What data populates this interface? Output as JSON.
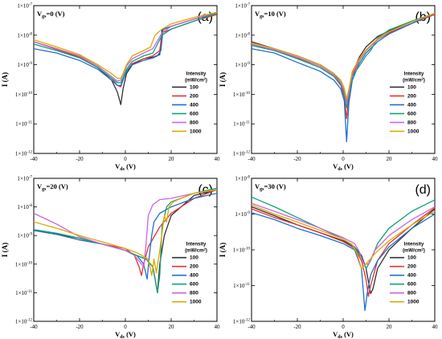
{
  "legend": {
    "title_line1": "Intensity",
    "title_line2": "(mW/cm",
    "title_sup": "2",
    "title_close": ")",
    "position": "center-right"
  },
  "series_colors": [
    "#333333",
    "#e8312f",
    "#1f6fd1",
    "#11a37a",
    "#cc66dd",
    "#e0a800"
  ],
  "chart_data": [
    {
      "type": "line",
      "panel_label": "(a)",
      "gate_label": "V",
      "gate_sub": "gs",
      "gate_value": "=0 (V)",
      "xlabel": "V",
      "xlabel_sub": "ds",
      "xlabel_unit": " (V)",
      "ylabel": "I (A)",
      "y_scale": "log",
      "xlim": [
        -40,
        40
      ],
      "ylim": [
        1e-12,
        1e-07
      ],
      "x_ticks": [
        "-40",
        "-20",
        "0",
        "20",
        "40"
      ],
      "y_ticks": [
        {
          "m": "1×10",
          "e": "-12"
        },
        {
          "m": "1×10",
          "e": "-11"
        },
        {
          "m": "1×10",
          "e": "-10"
        },
        {
          "m": "1×10",
          "e": "-9"
        },
        {
          "m": "1×10",
          "e": "-8"
        },
        {
          "m": "1×10",
          "e": "-7"
        }
      ],
      "series": [
        {
          "name": "100",
          "x": [
            -40,
            -30,
            -20,
            -12,
            -6,
            -3.5,
            -2,
            -1,
            0.5,
            3,
            8,
            12,
            15,
            16,
            20,
            30,
            40
          ],
          "y": [
            6e-09,
            3.5e-09,
            1.8e-09,
            8e-10,
            3e-10,
            1.2e-10,
            4.5e-11,
            1.5e-10,
            5e-10,
            1e-09,
            1.6e-09,
            1.8e-09,
            2.2e-09,
            1.5e-08,
            2e-08,
            3.5e-08,
            5.5e-08
          ]
        },
        {
          "name": "200",
          "x": [
            -40,
            -30,
            -20,
            -12,
            -6,
            -3.5,
            -2,
            -1,
            0.5,
            3,
            8,
            12,
            15,
            16,
            20,
            30,
            40
          ],
          "y": [
            6e-09,
            3.3e-09,
            1.8e-09,
            8e-10,
            3.5e-10,
            2e-10,
            1.8e-10,
            3e-10,
            6e-10,
            1.1e-09,
            1.6e-09,
            2e-09,
            3e-09,
            1.2e-08,
            1.6e-08,
            3e-08,
            5e-08
          ]
        },
        {
          "name": "400",
          "x": [
            -40,
            -30,
            -20,
            -12,
            -6,
            -3.5,
            -2,
            -1,
            0.5,
            3,
            8,
            12,
            14,
            15.5,
            16.5,
            20,
            30,
            40
          ],
          "y": [
            3.5e-09,
            2.5e-09,
            1.4e-09,
            7e-10,
            3e-10,
            2e-10,
            2e-10,
            3e-10,
            6e-10,
            1e-09,
            1.4e-09,
            1.7e-09,
            2e-09,
            3e-09,
            1.6e-08,
            2e-08,
            3.5e-08,
            5.5e-08
          ]
        },
        {
          "name": "600",
          "x": [
            -40,
            -30,
            -20,
            -12,
            -6,
            -3.5,
            -2,
            -1,
            0.5,
            3,
            8,
            12,
            16,
            20,
            30,
            40
          ],
          "y": [
            5e-09,
            3e-09,
            1.7e-09,
            8e-10,
            3.5e-10,
            2.5e-10,
            2.5e-10,
            3.5e-10,
            7e-10,
            1.3e-09,
            2e-09,
            2.5e-09,
            1e-08,
            1.6e-08,
            3e-08,
            5.5e-08
          ]
        },
        {
          "name": "800",
          "x": [
            -40,
            -30,
            -20,
            -12,
            -6,
            -3.5,
            -2,
            -1,
            0.5,
            3,
            8,
            12,
            16,
            20,
            30,
            40
          ],
          "y": [
            6e-09,
            3.5e-09,
            2e-09,
            9e-10,
            4e-10,
            2.8e-10,
            3e-10,
            4.5e-10,
            9e-10,
            1.6e-09,
            2.5e-09,
            3.5e-09,
            1.2e-08,
            2e-08,
            3.5e-08,
            6e-08
          ]
        },
        {
          "name": "1000",
          "x": [
            -40,
            -30,
            -20,
            -12,
            -6,
            -3.5,
            -2,
            -1,
            0.5,
            3,
            8,
            11,
            13,
            16,
            20,
            30,
            40
          ],
          "y": [
            7e-09,
            4e-09,
            2.2e-09,
            1e-09,
            5e-10,
            3.5e-10,
            3.5e-10,
            5e-10,
            1e-09,
            2e-09,
            3e-09,
            4e-09,
            1e-08,
            1.6e-08,
            2.4e-08,
            4e-08,
            6e-08
          ]
        }
      ]
    },
    {
      "type": "line",
      "panel_label": "(b)",
      "gate_label": "V",
      "gate_sub": "gs",
      "gate_value": "=10 (V)",
      "xlabel": "V",
      "xlabel_sub": "ds",
      "xlabel_unit": " (V)",
      "ylabel": "I (A)",
      "y_scale": "log",
      "xlim": [
        -40,
        40
      ],
      "ylim": [
        1e-12,
        1e-07
      ],
      "x_ticks": [
        "-40",
        "-20",
        "0",
        "20",
        "40"
      ],
      "y_ticks": [
        {
          "m": "1×10",
          "e": "-12"
        },
        {
          "m": "1×10",
          "e": "-11"
        },
        {
          "m": "1×10",
          "e": "-10"
        },
        {
          "m": "1×10",
          "e": "-9"
        },
        {
          "m": "1×10",
          "e": "-8"
        },
        {
          "m": "1×10",
          "e": "-7"
        }
      ],
      "series": [
        {
          "name": "100",
          "x": [
            -40,
            -30,
            -20,
            -10,
            -4,
            -1,
            0.5,
            1.5,
            2.5,
            4,
            7,
            10,
            15,
            20,
            30,
            40
          ],
          "y": [
            6e-09,
            3.5e-09,
            2e-09,
            1e-09,
            5e-10,
            2.5e-10,
            1.2e-10,
            6e-11,
            1.3e-10,
            5e-10,
            1.8e-09,
            4e-09,
            9e-09,
            1.4e-08,
            2.8e-08,
            5.5e-08
          ]
        },
        {
          "name": "200",
          "x": [
            -40,
            -30,
            -20,
            -10,
            -4,
            -1,
            0.5,
            1.5,
            2.5,
            4,
            7,
            10,
            15,
            20,
            30,
            40
          ],
          "y": [
            5e-09,
            3e-09,
            1.7e-09,
            8e-10,
            4e-10,
            2e-10,
            8e-11,
            1.5e-11,
            9e-11,
            4e-10,
            1.4e-09,
            3e-09,
            7e-09,
            1.2e-08,
            2.5e-08,
            5e-08
          ]
        },
        {
          "name": "400",
          "x": [
            -40,
            -30,
            -20,
            -10,
            -4,
            -1,
            0.5,
            1.5,
            2.5,
            4,
            7,
            10,
            15,
            20,
            30,
            40
          ],
          "y": [
            3.5e-09,
            2.5e-09,
            1.2e-09,
            6e-10,
            3e-10,
            1.5e-10,
            6e-11,
            2.5e-12,
            5e-11,
            3e-10,
            1.1e-09,
            2.5e-09,
            6e-09,
            1.1e-08,
            2.5e-08,
            5.5e-08
          ]
        },
        {
          "name": "600",
          "x": [
            -40,
            -30,
            -20,
            -10,
            -4,
            -1,
            0.5,
            1.5,
            2.5,
            4,
            7,
            10,
            12,
            15,
            20,
            30,
            40
          ],
          "y": [
            4.5e-09,
            3e-09,
            1.6e-09,
            8e-10,
            4e-10,
            2.2e-10,
            1e-10,
            3.5e-11,
            1e-10,
            4e-10,
            9e-10,
            2e-09,
            3e-09,
            8e-09,
            1.5e-08,
            3e-08,
            5.5e-08
          ]
        },
        {
          "name": "800",
          "x": [
            -40,
            -30,
            -20,
            -10,
            -4,
            -1,
            0.5,
            1.5,
            2.5,
            4,
            7,
            10,
            15,
            20,
            30,
            40
          ],
          "y": [
            5e-09,
            3.2e-09,
            1.8e-09,
            9e-10,
            4.5e-10,
            2.5e-10,
            1.3e-10,
            5e-11,
            1.2e-10,
            5e-10,
            1.5e-09,
            3e-09,
            7e-09,
            1.3e-08,
            2.8e-08,
            5.5e-08
          ]
        },
        {
          "name": "1000",
          "x": [
            -40,
            -30,
            -20,
            -10,
            -4,
            -1,
            0.5,
            1.5,
            2.5,
            4,
            7,
            10,
            15,
            20,
            30,
            40
          ],
          "y": [
            5.5e-09,
            3.5e-09,
            2e-09,
            1e-09,
            5e-10,
            3e-10,
            1.6e-10,
            7e-11,
            1.5e-10,
            6e-10,
            1.6e-09,
            3.2e-09,
            7.5e-09,
            1.3e-08,
            2.8e-08,
            5.5e-08
          ]
        }
      ]
    },
    {
      "type": "line",
      "panel_label": "(c)",
      "gate_label": "V",
      "gate_sub": "gs",
      "gate_value": "=20 (V)",
      "xlabel": "V",
      "xlabel_sub": "ds",
      "xlabel_unit": " (V)",
      "ylabel": "I (A)",
      "y_scale": "log",
      "xlim": [
        -40,
        40
      ],
      "ylim": [
        1e-12,
        1e-07
      ],
      "x_ticks": [
        "-40",
        "-20",
        "0",
        "20",
        "40"
      ],
      "y_ticks": [
        {
          "m": "1×10",
          "e": "-12"
        },
        {
          "m": "1×10",
          "e": "-11"
        },
        {
          "m": "1×10",
          "e": "-10"
        },
        {
          "m": "1×10",
          "e": "-9"
        },
        {
          "m": "1×10",
          "e": "-8"
        },
        {
          "m": "1×10",
          "e": "-7"
        }
      ],
      "series": [
        {
          "name": "100",
          "x": [
            -40,
            -30,
            -20,
            -10,
            0,
            5,
            9,
            12,
            13,
            14,
            15,
            17,
            20,
            30,
            40
          ],
          "y": [
            1.5e-09,
            1.1e-09,
            8e-10,
            5e-10,
            3e-10,
            2e-10,
            1.5e-10,
            8e-11,
            3e-11,
            1e-11,
            1e-10,
            1e-09,
            5e-09,
            2.5e-08,
            4e-08
          ]
        },
        {
          "name": "200",
          "x": [
            -40,
            -30,
            -20,
            -10,
            0,
            4,
            6,
            7,
            8,
            10,
            15,
            20,
            30,
            40
          ],
          "y": [
            1.6e-09,
            1.2e-09,
            8e-10,
            5e-10,
            3.5e-10,
            2e-10,
            8e-11,
            4e-11,
            1e-10,
            4e-10,
            2e-09,
            6e-09,
            2e-08,
            4e-08
          ]
        },
        {
          "name": "400",
          "x": [
            -40,
            -30,
            -20,
            -10,
            0,
            5,
            8,
            9.5,
            10.5,
            11.5,
            12.5,
            15,
            20,
            30,
            40
          ],
          "y": [
            1.5e-09,
            1.1e-09,
            7e-10,
            5e-10,
            3e-10,
            2e-10,
            1e-10,
            3e-11,
            2e-10,
            1e-09,
            3e-09,
            6e-09,
            1e-08,
            2e-08,
            3e-08
          ]
        },
        {
          "name": "600",
          "x": [
            -40,
            -30,
            -20,
            -10,
            0,
            5,
            9,
            12,
            13,
            14,
            15,
            16,
            18,
            20,
            30,
            40
          ],
          "y": [
            1.6e-09,
            1.2e-09,
            8e-10,
            5e-10,
            3e-10,
            2e-10,
            1.5e-10,
            8e-11,
            3e-11,
            1e-11,
            4e-11,
            2e-09,
            1e-08,
            1.5e-08,
            3e-08,
            4.5e-08
          ]
        },
        {
          "name": "800",
          "x": [
            -40,
            -30,
            -25,
            -20,
            -10,
            0,
            4,
            8,
            9,
            10,
            12,
            15,
            20,
            30,
            40
          ],
          "y": [
            6e-09,
            2.5e-09,
            1.5e-09,
            9e-10,
            5e-10,
            3e-10,
            2e-10,
            8e-11,
            5e-10,
            5e-09,
            1.2e-08,
            1.8e-08,
            2e-08,
            3e-08,
            4e-08
          ]
        },
        {
          "name": "1000",
          "x": [
            -40,
            -30,
            -20,
            -10,
            0,
            5,
            10,
            11.5,
            12.5,
            13.5,
            15,
            17,
            18,
            19,
            21,
            23,
            30,
            40
          ],
          "y": [
            3e-09,
            1.8e-09,
            1e-09,
            6e-10,
            3.5e-10,
            2.5e-10,
            1.5e-10,
            4e-11,
            1.5e-10,
            5e-11,
            3e-10,
            5e-09,
            3e-09,
            1e-08,
            1.5e-08,
            1.8e-08,
            3e-08,
            4e-08
          ]
        }
      ]
    },
    {
      "type": "line",
      "panel_label": "(d)",
      "gate_label": "V",
      "gate_sub": "gs",
      "gate_value": "=30 (V)",
      "xlabel": "V",
      "xlabel_sub": "ds",
      "xlabel_unit": " (V)",
      "ylabel": "I (A)",
      "y_scale": "log",
      "xlim": [
        -40,
        40
      ],
      "ylim": [
        1e-12,
        1e-08
      ],
      "x_ticks": [
        "-40",
        "-20",
        "0",
        "20",
        "40"
      ],
      "y_ticks": [
        {
          "m": "1×10",
          "e": "-12"
        },
        {
          "m": "1×10",
          "e": "-11"
        },
        {
          "m": "1×10",
          "e": "-10"
        },
        {
          "m": "1×10",
          "e": "-9"
        },
        {
          "m": "1×10",
          "e": "-8"
        }
      ],
      "series": [
        {
          "name": "100",
          "x": [
            -40,
            -30,
            -20,
            -10,
            0,
            5,
            8,
            10,
            12,
            13,
            15,
            20,
            30,
            40
          ],
          "y": [
            1.6e-09,
            9e-10,
            5e-10,
            3e-10,
            1.8e-10,
            1.2e-10,
            7e-11,
            3e-11,
            6e-12,
            8e-12,
            3e-11,
            1e-10,
            4e-10,
            1.4e-09
          ]
        },
        {
          "name": "200",
          "x": [
            -40,
            -30,
            -20,
            -10,
            0,
            5,
            8,
            10,
            11,
            12,
            15,
            20,
            30,
            40
          ],
          "y": [
            1.4e-09,
            8e-10,
            5e-10,
            3e-10,
            1.7e-10,
            1.1e-10,
            5e-11,
            1.5e-11,
            5e-12,
            1e-11,
            5e-11,
            1.5e-10,
            5e-10,
            1.5e-09
          ]
        },
        {
          "name": "400",
          "x": [
            -40,
            -30,
            -20,
            -10,
            0,
            5,
            8,
            9.5,
            10.5,
            12,
            15,
            20,
            30,
            40
          ],
          "y": [
            1.1e-09,
            7e-10,
            4e-10,
            2.5e-10,
            1.5e-10,
            1e-10,
            3e-11,
            2e-12,
            6e-12,
            2e-11,
            5e-11,
            1.2e-10,
            4e-10,
            1e-09
          ]
        },
        {
          "name": "600",
          "x": [
            -40,
            -30,
            -20,
            -10,
            0,
            5,
            8,
            10,
            12,
            15,
            20,
            30,
            40
          ],
          "y": [
            3e-09,
            1.6e-09,
            8e-10,
            4e-10,
            2e-10,
            1.2e-10,
            6e-11,
            3e-11,
            5e-11,
            1.5e-10,
            4e-10,
            1.2e-09,
            2.5e-09
          ]
        },
        {
          "name": "800",
          "x": [
            -40,
            -30,
            -20,
            -10,
            0,
            5,
            7,
            9,
            11,
            14,
            20,
            30,
            40
          ],
          "y": [
            2e-09,
            1.2e-09,
            7e-10,
            4e-10,
            2.2e-10,
            1.5e-10,
            9e-11,
            4e-11,
            4e-11,
            1e-10,
            2.5e-10,
            7e-10,
            1.6e-09
          ]
        },
        {
          "name": "1000",
          "x": [
            -40,
            -30,
            -20,
            -10,
            0,
            4,
            6,
            8,
            10,
            14,
            20,
            30,
            40
          ],
          "y": [
            1.8e-09,
            1e-09,
            6e-10,
            3.5e-10,
            2e-10,
            1.4e-10,
            8e-11,
            3e-11,
            4e-11,
            8e-11,
            1.8e-10,
            5e-10,
            1.2e-09
          ]
        }
      ]
    }
  ]
}
